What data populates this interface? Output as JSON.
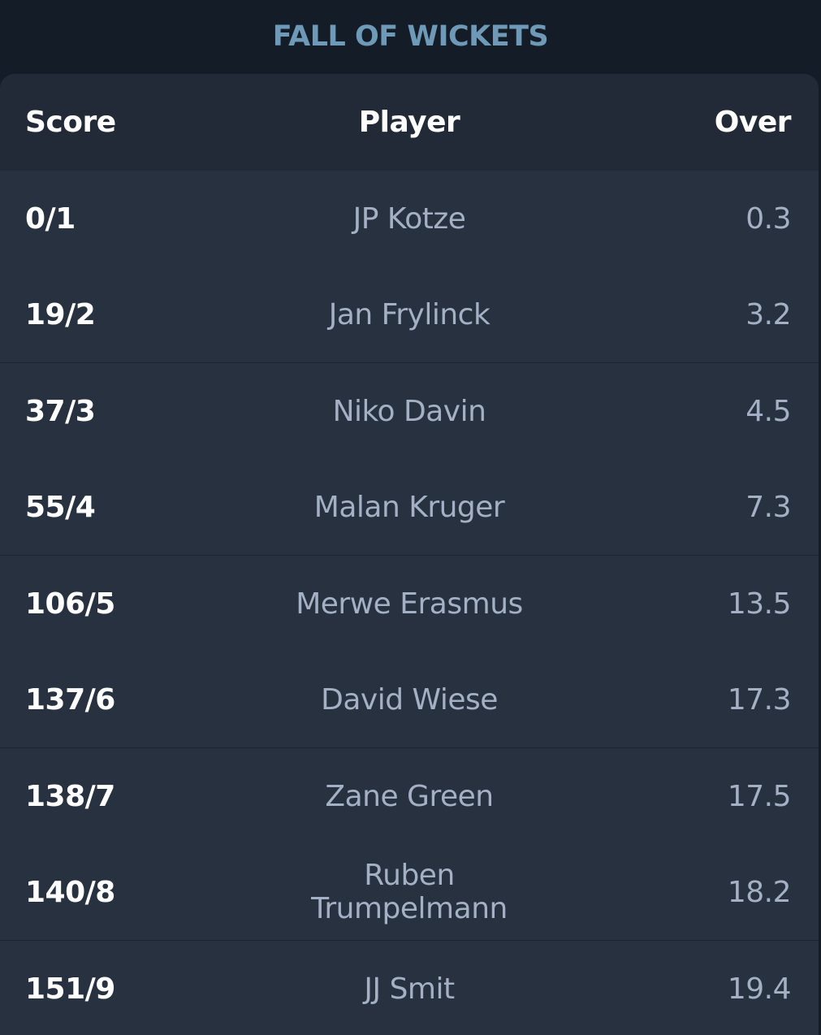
{
  "title": "FALL OF WICKETS",
  "columns": {
    "score": "Score",
    "player": "Player",
    "over": "Over"
  },
  "rows": [
    {
      "score": "0/1",
      "player": "JP Kotze",
      "over": "0.3"
    },
    {
      "score": "19/2",
      "player": "Jan Frylinck",
      "over": "3.2"
    },
    {
      "score": "37/3",
      "player": "Niko Davin",
      "over": "4.5"
    },
    {
      "score": "55/4",
      "player": "Malan Kruger",
      "over": "7.3"
    },
    {
      "score": "106/5",
      "player": "Merwe Erasmus",
      "over": "13.5"
    },
    {
      "score": "137/6",
      "player": "David Wiese",
      "over": "17.3"
    },
    {
      "score": "138/7",
      "player": "Zane Green",
      "over": "17.5"
    },
    {
      "score": "140/8",
      "player": "Ruben Trumpelmann",
      "over": "18.2"
    },
    {
      "score": "151/9",
      "player": "JJ Smit",
      "over": "19.4"
    }
  ]
}
